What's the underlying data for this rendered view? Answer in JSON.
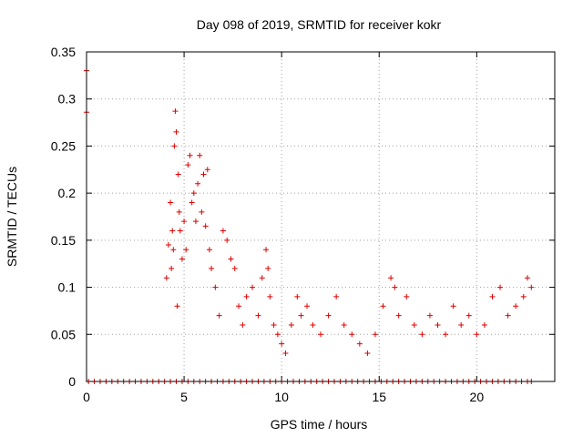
{
  "chart_data": {
    "type": "scatter",
    "title": "Day 098 of 2019, SRMTID for receiver kokr",
    "xlabel": "GPS time / hours",
    "ylabel": "SRMTID / TECUs",
    "xlim": [
      0,
      24
    ],
    "ylim": [
      0,
      0.35
    ],
    "x_ticks": [
      0,
      5,
      10,
      15,
      20
    ],
    "x_tick_labels": [
      "0",
      "5",
      "10",
      "15",
      "20"
    ],
    "y_ticks": [
      0,
      0.05,
      0.1,
      0.15,
      0.2,
      0.25,
      0.3,
      0.35
    ],
    "y_tick_labels": [
      "0",
      "0.05",
      "0.1",
      "0.15",
      "0.2",
      "0.25",
      "0.3",
      "0.35"
    ],
    "grid": true,
    "marker": "plus",
    "color": "#e00000",
    "series": [
      {
        "name": "SRMTID",
        "x": [
          0.0,
          0.0,
          4.1,
          4.2,
          4.3,
          4.35,
          4.4,
          4.45,
          4.5,
          4.55,
          4.6,
          4.65,
          4.7,
          4.75,
          4.8,
          4.9,
          5.0,
          5.1,
          5.2,
          5.3,
          5.4,
          5.5,
          5.6,
          5.7,
          5.8,
          5.9,
          6.0,
          6.1,
          6.2,
          6.3,
          6.4,
          6.6,
          6.8,
          7.0,
          7.2,
          7.4,
          7.6,
          7.8,
          8.0,
          8.2,
          8.5,
          8.8,
          9.0,
          9.2,
          9.3,
          9.4,
          9.6,
          9.8,
          10.0,
          10.2,
          10.5,
          10.8,
          11.0,
          11.3,
          11.6,
          12.0,
          12.4,
          12.8,
          13.2,
          13.6,
          14.0,
          14.4,
          14.8,
          15.2,
          15.6,
          15.8,
          16.0,
          16.4,
          16.8,
          17.2,
          17.6,
          18.0,
          18.4,
          18.8,
          19.2,
          19.6,
          20.0,
          20.4,
          20.8,
          21.2,
          21.6,
          22.0,
          22.4,
          22.6,
          22.8
        ],
        "y": [
          0.33,
          0.286,
          0.11,
          0.145,
          0.19,
          0.12,
          0.16,
          0.14,
          0.25,
          0.287,
          0.265,
          0.08,
          0.22,
          0.18,
          0.16,
          0.13,
          0.17,
          0.14,
          0.23,
          0.24,
          0.19,
          0.2,
          0.17,
          0.21,
          0.24,
          0.18,
          0.22,
          0.165,
          0.225,
          0.14,
          0.12,
          0.1,
          0.07,
          0.16,
          0.15,
          0.13,
          0.12,
          0.08,
          0.06,
          0.09,
          0.1,
          0.07,
          0.11,
          0.14,
          0.12,
          0.09,
          0.06,
          0.05,
          0.04,
          0.03,
          0.06,
          0.09,
          0.07,
          0.08,
          0.06,
          0.05,
          0.07,
          0.09,
          0.06,
          0.05,
          0.04,
          0.03,
          0.05,
          0.08,
          0.11,
          0.1,
          0.07,
          0.09,
          0.06,
          0.05,
          0.07,
          0.06,
          0.05,
          0.08,
          0.06,
          0.07,
          0.05,
          0.06,
          0.09,
          0.1,
          0.07,
          0.08,
          0.09,
          0.11,
          0.1
        ]
      },
      {
        "name": "zero baseline",
        "x": [
          0.1,
          0.4,
          0.7,
          1.0,
          1.3,
          1.6,
          1.9,
          2.2,
          2.5,
          2.8,
          3.1,
          3.4,
          3.7,
          4.0,
          4.3,
          4.6,
          4.9,
          5.2,
          5.5,
          5.8,
          6.1,
          6.4,
          6.7,
          7.0,
          7.3,
          7.6,
          7.9,
          8.2,
          8.5,
          8.8,
          9.1,
          9.4,
          9.7,
          10.0,
          10.3,
          10.6,
          10.9,
          11.2,
          11.5,
          11.8,
          12.1,
          12.4,
          12.7,
          13.0,
          13.3,
          13.6,
          13.9,
          14.2,
          14.5,
          14.8,
          15.1,
          15.4,
          15.7,
          16.0,
          16.3,
          16.6,
          16.9,
          17.2,
          17.5,
          17.8,
          18.1,
          18.4,
          18.7,
          19.0,
          19.3,
          19.6,
          19.9,
          20.2,
          20.5,
          20.8,
          21.1,
          21.4,
          21.7,
          22.0,
          22.3,
          22.6,
          22.8
        ],
        "y": [
          0,
          0,
          0,
          0,
          0,
          0,
          0,
          0,
          0,
          0,
          0,
          0,
          0,
          0,
          0,
          0,
          0,
          0,
          0,
          0,
          0,
          0,
          0,
          0,
          0,
          0,
          0,
          0,
          0,
          0,
          0,
          0,
          0,
          0,
          0,
          0,
          0,
          0,
          0,
          0,
          0,
          0,
          0,
          0,
          0,
          0,
          0,
          0,
          0,
          0,
          0,
          0,
          0,
          0,
          0,
          0,
          0,
          0,
          0,
          0,
          0,
          0,
          0,
          0,
          0,
          0,
          0,
          0,
          0,
          0,
          0,
          0,
          0,
          0,
          0,
          0,
          0
        ]
      }
    ]
  }
}
